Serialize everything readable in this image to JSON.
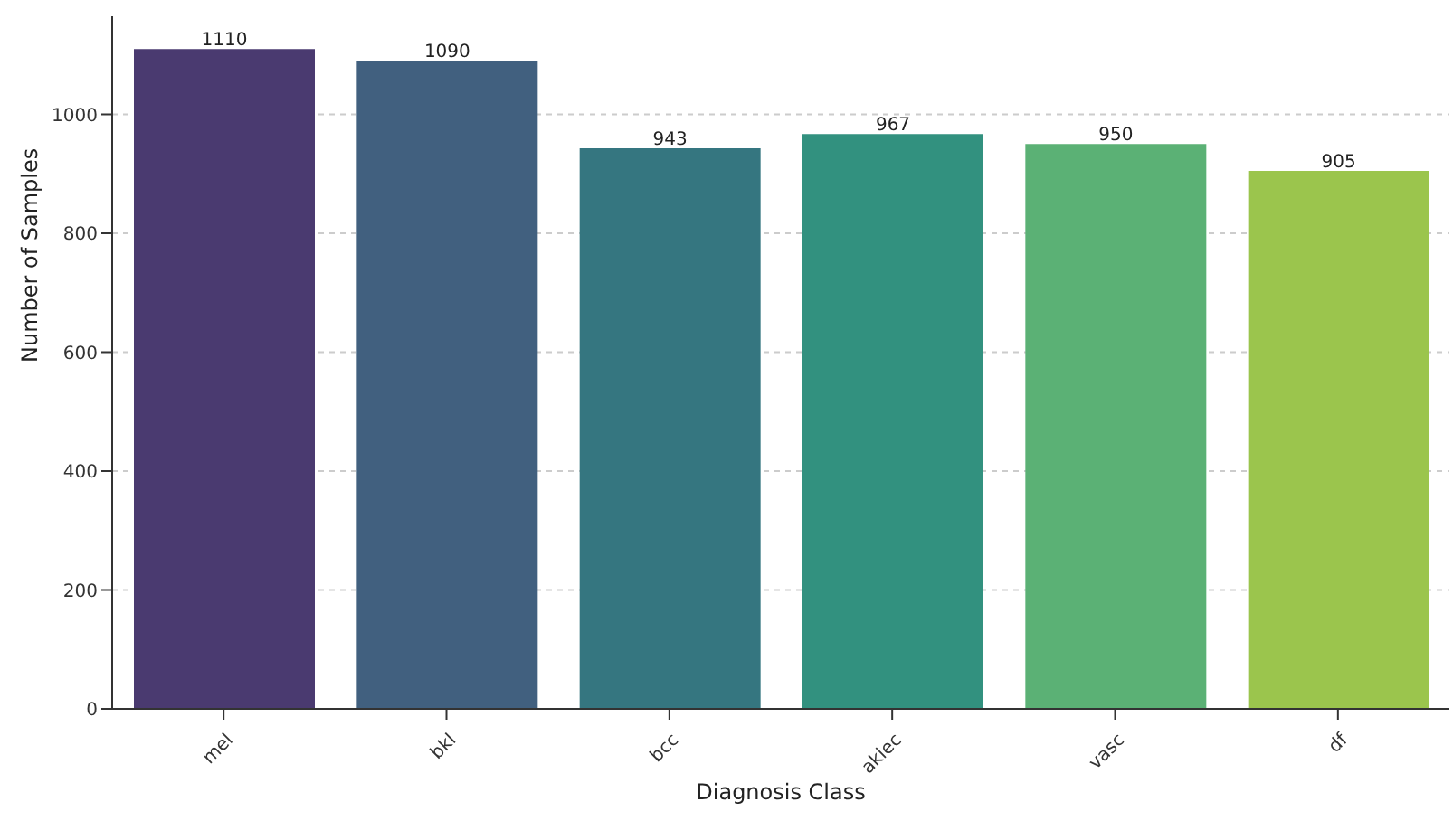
{
  "chart_data": {
    "type": "bar",
    "xlabel": "Diagnosis Class",
    "ylabel": "Number of Samples",
    "categories": [
      "mel",
      "bkl",
      "bcc",
      "akiec",
      "vasc",
      "df"
    ],
    "values": [
      1110,
      1090,
      943,
      967,
      950,
      905
    ],
    "colors": [
      "#4a3a70",
      "#41607f",
      "#357680",
      "#32917f",
      "#5bb175",
      "#9bc54d"
    ],
    "ylim": [
      0,
      1165
    ],
    "yticks": [
      0,
      200,
      400,
      600,
      800,
      1000
    ],
    "grid": "y",
    "data_labels": true
  }
}
